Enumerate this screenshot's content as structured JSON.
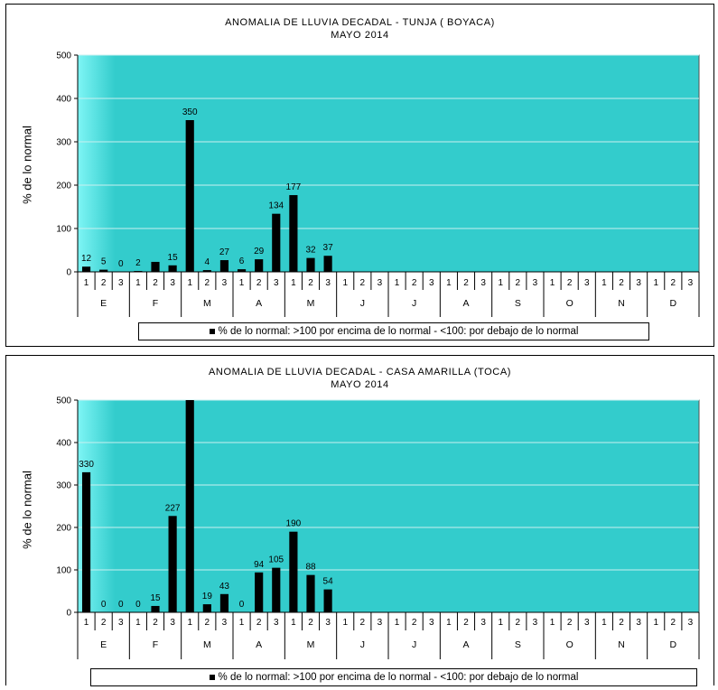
{
  "chart_data": [
    {
      "type": "bar",
      "title": "ANOMALIA DE LLUVIA DECADAL - TUNJA  ( BOYACA)",
      "subtitle": "MAYO 2014",
      "ylabel": "% de lo normal",
      "ylim": [
        0,
        500
      ],
      "yticks": [
        "0",
        "100",
        "200",
        "300",
        "400",
        "500"
      ],
      "grid": true,
      "months": [
        "E",
        "F",
        "M",
        "A",
        "M",
        "J",
        "J",
        "A",
        "S",
        "O",
        "N",
        "D"
      ],
      "decades": [
        "1",
        "2",
        "3"
      ],
      "series": [
        {
          "name": "% de lo normal: >100 por encima de lo normal - <100: por debajo de lo normal",
          "values": [
            12,
            5,
            0,
            2,
            23,
            15,
            350,
            4,
            27,
            6,
            29,
            134,
            177,
            32,
            37
          ],
          "labels": [
            "12",
            "5",
            "0",
            "2",
            "",
            "15",
            "350",
            "4",
            "27",
            "6",
            "29",
            "134",
            "177",
            "32",
            "37"
          ]
        }
      ],
      "legend": "% de lo normal: >100 por encima de lo normal - <100: por debajo de lo normal",
      "legend_position": "bottom",
      "bar_color": "#000000",
      "plot_color": "#33cccc"
    },
    {
      "type": "bar",
      "title": "ANOMALIA DE LLUVIA DECADAL - CASA AMARILLA  (TOCA)",
      "subtitle": "MAYO 2014",
      "ylabel": "% de lo normal",
      "ylim": [
        0,
        500
      ],
      "yticks": [
        "0",
        "100",
        "200",
        "300",
        "400",
        "500"
      ],
      "grid": true,
      "months": [
        "E",
        "F",
        "M",
        "A",
        "M",
        "J",
        "J",
        "A",
        "S",
        "O",
        "N",
        "D"
      ],
      "decades": [
        "1",
        "2",
        "3"
      ],
      "series": [
        {
          "name": "% de lo normal: >100 por encima de lo normal - <100: por debajo de lo normal",
          "values": [
            330,
            0,
            0,
            0,
            15,
            227,
            510,
            19,
            43,
            0,
            94,
            105,
            190,
            88,
            54
          ],
          "labels": [
            "330",
            "0",
            "0",
            "0",
            "15",
            "227",
            "",
            "19",
            "43",
            "0",
            "94",
            "105",
            "190",
            "88",
            "54"
          ]
        }
      ],
      "legend": "% de lo normal: >100 por encima de lo normal - <100: por debajo de lo normal",
      "legend_position": "bottom",
      "bar_color": "#000000",
      "plot_color": "#33cccc"
    }
  ]
}
